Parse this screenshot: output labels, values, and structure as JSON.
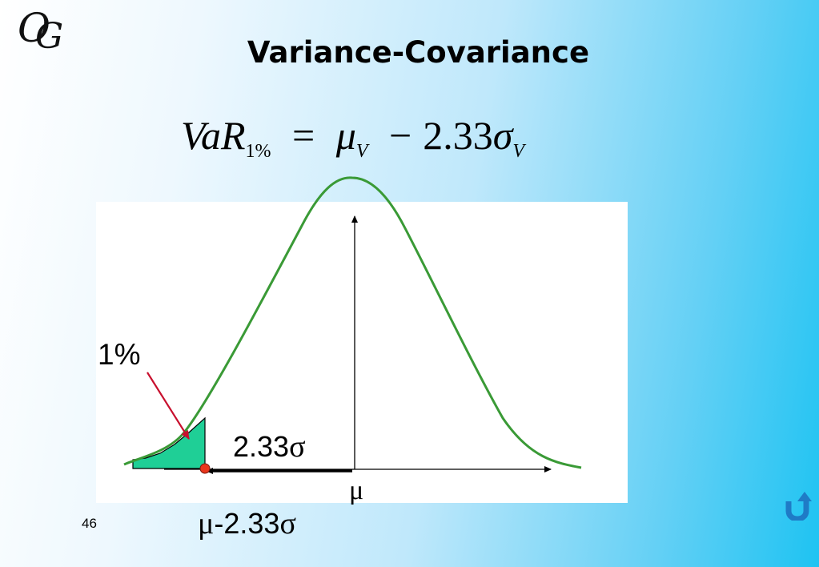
{
  "slide": {
    "title": "Variance-Covariance",
    "page_number": "46"
  },
  "logo": {
    "letter1": "O",
    "letter2": "G"
  },
  "formula": {
    "var": "VaR",
    "subscript": "1%",
    "equals": "=",
    "mu": "μ",
    "mu_sub": "V",
    "minus": "−",
    "coefficient": "2.33",
    "sigma": "σ",
    "sigma_sub": "V"
  },
  "diagram": {
    "tail_label": "1%",
    "distance_value": "2.33",
    "distance_symbol": "σ",
    "mean_label": "μ",
    "var_point_prefix": "μ",
    "var_point_value": "-2.33",
    "var_point_symbol": "σ"
  },
  "colors": {
    "curve": "#3a9a36",
    "tail_fill": "#1fcf96",
    "arrow_pointer": "#c8102e",
    "var_marker": "#e8361c",
    "return_icon": "#1f7bc6"
  },
  "icons": {
    "return": "u-turn-arrow-icon"
  }
}
